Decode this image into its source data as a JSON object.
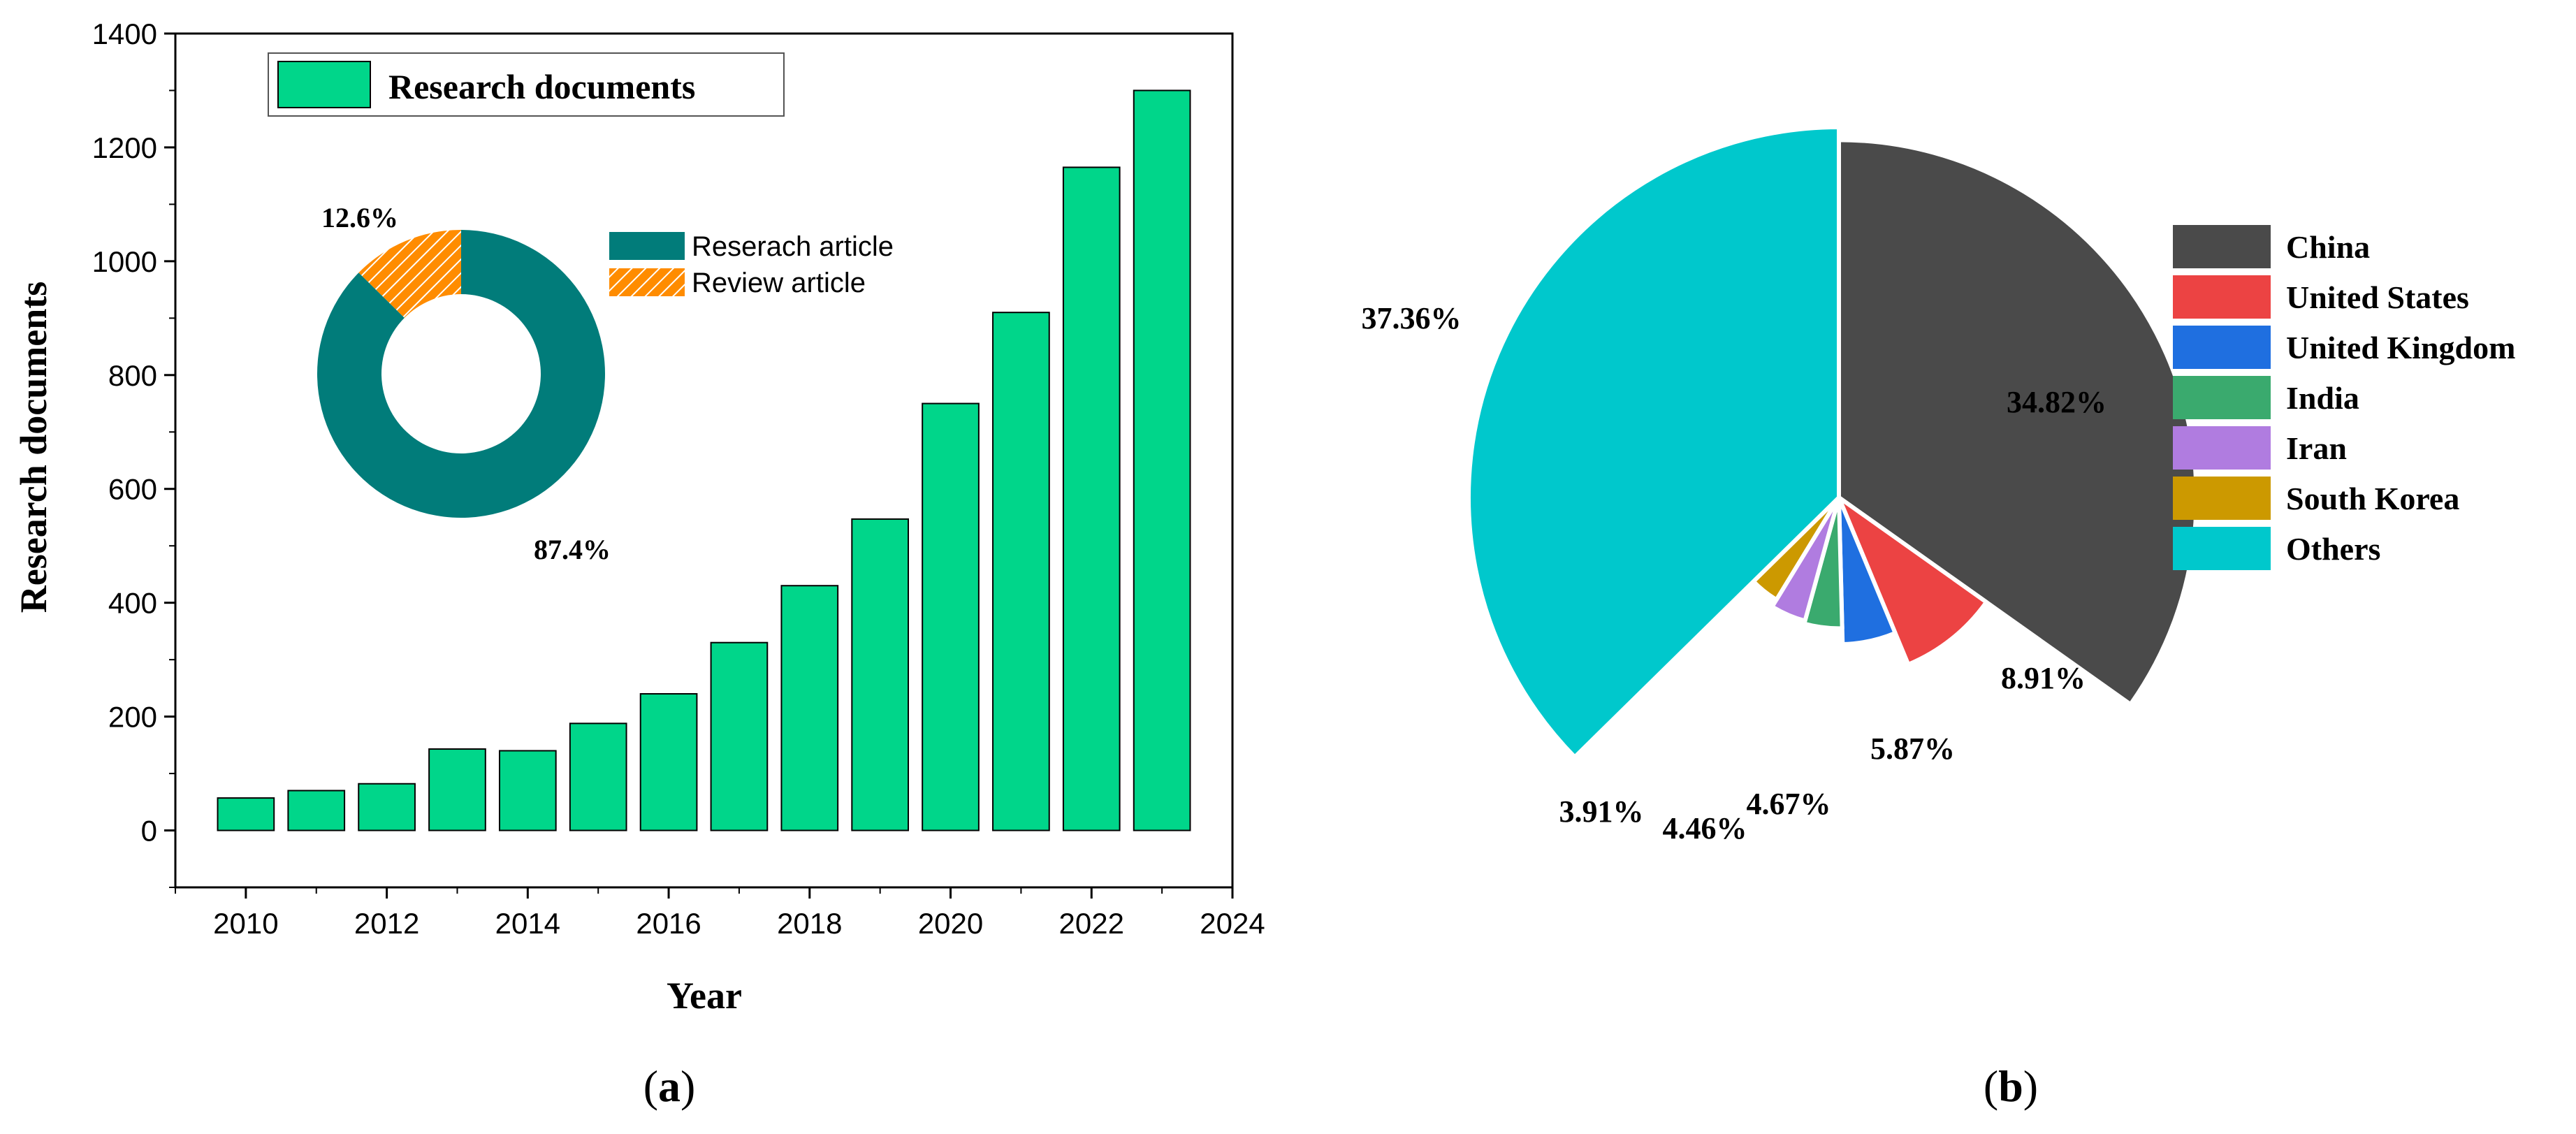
{
  "chart_data": [
    {
      "panel": "a",
      "type": "bar",
      "panel_label": {
        "open": "(",
        "letter": "a",
        "close": ")"
      },
      "xlabel": "Year",
      "ylabel": "Research documents",
      "x": [
        2010,
        2011,
        2012,
        2013,
        2014,
        2015,
        2016,
        2017,
        2018,
        2019,
        2020,
        2021,
        2022,
        2023
      ],
      "values": [
        57,
        70,
        82,
        143,
        140,
        188,
        240,
        330,
        430,
        547,
        750,
        910,
        1165,
        1300
      ],
      "xlim": [
        2009,
        2024
      ],
      "ylim": [
        -100,
        1400
      ],
      "x_ticks": [
        "2010",
        "2012",
        "2014",
        "2016",
        "2018",
        "2020",
        "2022",
        "2024"
      ],
      "y_ticks": [
        "0",
        "200",
        "400",
        "600",
        "800",
        "1000",
        "1200",
        "1400"
      ],
      "legend": "Research documents",
      "legend_position": "top-left",
      "bar_color": "#00D68A",
      "inset": {
        "type": "donut",
        "slices": [
          {
            "name": "Reserach article",
            "value": 87.4,
            "label": "87.4%",
            "color": "#017C7A"
          },
          {
            "name": "Review article",
            "value": 12.6,
            "label": "12.6%",
            "color": "#FF8C00"
          }
        ]
      }
    },
    {
      "panel": "b",
      "type": "pie",
      "panel_label": {
        "open": "(",
        "letter": "b",
        "close": ")"
      },
      "style": "rose",
      "legend_position": "right",
      "slices": [
        {
          "name": "China",
          "value": 34.82,
          "label": "34.82%",
          "color": "#4A4A4A"
        },
        {
          "name": "United States",
          "value": 8.91,
          "label": "8.91%",
          "color": "#EC4343"
        },
        {
          "name": "United Kingdom",
          "value": 5.87,
          "label": "5.87%",
          "color": "#1F6FE0"
        },
        {
          "name": "India",
          "value": 4.67,
          "label": "4.67%",
          "color": "#3AAA6E"
        },
        {
          "name": "Iran",
          "value": 4.46,
          "label": "4.46%",
          "color": "#B07CE0"
        },
        {
          "name": "South Korea",
          "value": 3.91,
          "label": "3.91%",
          "color": "#CC9900"
        },
        {
          "name": "Others",
          "value": 37.36,
          "label": "37.36%",
          "color": "#00C8CC"
        }
      ]
    }
  ]
}
